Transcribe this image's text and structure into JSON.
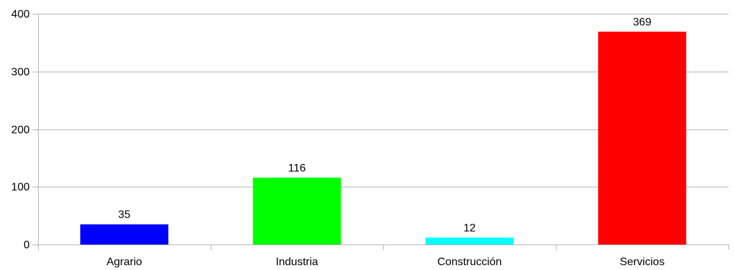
{
  "chart_data": {
    "type": "bar",
    "categories": [
      "Agrario",
      "Industria",
      "Construcción",
      "Servicios"
    ],
    "values": [
      35,
      116,
      12,
      369
    ],
    "data_labels": [
      "35",
      "116",
      "12",
      "369"
    ],
    "colors": [
      "#0000ff",
      "#00ff00",
      "#00ffff",
      "#ff0000"
    ],
    "ylim": [
      0,
      400
    ],
    "yticks": [
      0,
      100,
      200,
      300,
      400
    ],
    "ytick_labels": [
      "0",
      "100",
      "200",
      "300",
      "400"
    ],
    "grid": "horizontal",
    "legend": "none"
  }
}
